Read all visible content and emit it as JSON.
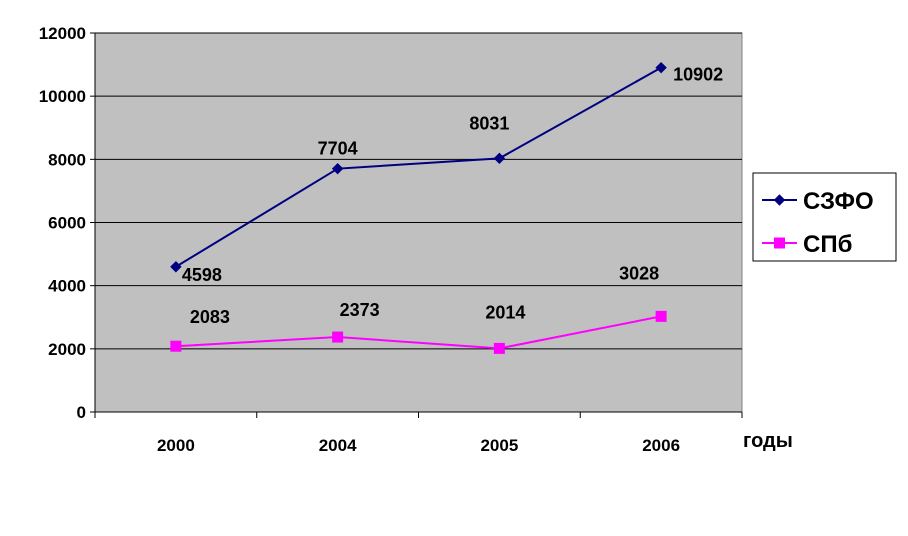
{
  "chart_data": {
    "type": "line",
    "categories": [
      "2000",
      "2004",
      "2005",
      "2006"
    ],
    "xlabel": "годы",
    "ylabel": "",
    "ylim": [
      0,
      12000
    ],
    "yticks": [
      0,
      2000,
      4000,
      6000,
      8000,
      10000,
      12000
    ],
    "grid": true,
    "legend": "right",
    "plot_background": "#c0c0c0",
    "series": [
      {
        "name": "СЗФО",
        "values": [
          4598,
          7704,
          8031,
          10902
        ],
        "labels": [
          "4598",
          "7704",
          "8031",
          "10902"
        ],
        "color": "#000080",
        "marker": "diamond"
      },
      {
        "name": "СПб",
        "values": [
          2083,
          2373,
          2014,
          3028
        ],
        "labels": [
          "2083",
          "2373",
          "2014",
          "3028"
        ],
        "color": "#ff00ff",
        "marker": "square"
      }
    ]
  }
}
